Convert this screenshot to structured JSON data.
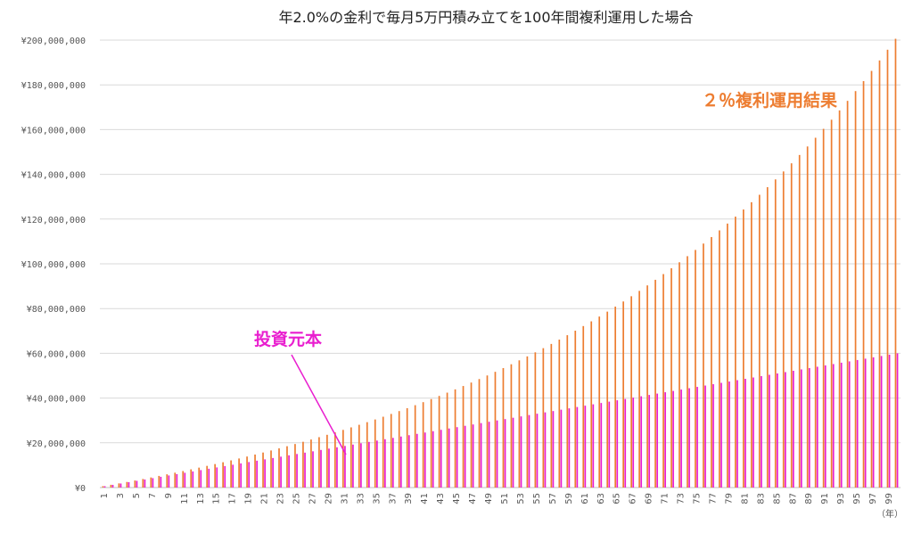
{
  "chart_data": {
    "type": "bar",
    "title": "年2.0%の金利で毎月5万円積み立てを100年間複利運用した場合",
    "x_unit_label": "（年）",
    "x": [
      1,
      2,
      3,
      4,
      5,
      6,
      7,
      8,
      9,
      10,
      11,
      12,
      13,
      14,
      15,
      16,
      17,
      18,
      19,
      20,
      21,
      22,
      23,
      24,
      25,
      26,
      27,
      28,
      29,
      30,
      31,
      32,
      33,
      34,
      35,
      36,
      37,
      38,
      39,
      40,
      41,
      42,
      43,
      44,
      45,
      46,
      47,
      48,
      49,
      50,
      51,
      52,
      53,
      54,
      55,
      56,
      57,
      58,
      59,
      60,
      61,
      62,
      63,
      64,
      65,
      66,
      67,
      68,
      69,
      70,
      71,
      72,
      73,
      74,
      75,
      76,
      77,
      78,
      79,
      80,
      81,
      82,
      83,
      84,
      85,
      86,
      87,
      88,
      89,
      90,
      91,
      92,
      93,
      94,
      95,
      96,
      97,
      98,
      99,
      100
    ],
    "x_tick_labels": [
      "1",
      "3",
      "5",
      "7",
      "9",
      "11",
      "13",
      "15",
      "17",
      "19",
      "21",
      "23",
      "25",
      "27",
      "29",
      "31",
      "33",
      "35",
      "37",
      "39",
      "41",
      "43",
      "45",
      "47",
      "49",
      "51",
      "53",
      "55",
      "57",
      "59",
      "61",
      "63",
      "65",
      "67",
      "69",
      "71",
      "73",
      "75",
      "77",
      "79",
      "81",
      "83",
      "85",
      "87",
      "89",
      "91",
      "93",
      "95",
      "97",
      "99"
    ],
    "y_tick_labels": [
      "¥0",
      "¥20,000,000",
      "¥40,000,000",
      "¥60,000,000",
      "¥80,000,000",
      "¥100,000,000",
      "¥120,000,000",
      "¥140,000,000",
      "¥160,000,000",
      "¥180,000,000",
      "¥200,000,000"
    ],
    "ylim": [
      0,
      200000000
    ],
    "grid": true,
    "series": [
      {
        "name": "2％複利運用結果",
        "color": "#ED7D31",
        "values": [
          606638,
          1225286,
          1856289,
          2499906,
          3156400,
          3826041,
          4509106,
          5205880,
          5916650,
          6641714,
          7381374,
          8135939,
          8905726,
          9691058,
          10492267,
          11309688,
          12143667,
          12994555,
          13862711,
          14748503,
          15652305,
          16574500,
          17515478,
          18475640,
          19455394,
          20455158,
          21475360,
          22516435,
          23578833,
          24663012,
          25769440,
          26898597,
          28050975,
          29227076,
          30427415,
          31652520,
          32902932,
          34179205,
          35481906,
          36811617,
          38168936,
          39554473,
          40968855,
          42412725,
          43886741,
          45391581,
          46927936,
          48496518,
          50098056,
          51733297,
          53403009,
          55107977,
          56849009,
          58626934,
          60442602,
          62296885,
          64190677,
          66124897,
          68100487,
          70118413,
          72179667,
          74285266,
          76436253,
          78633698,
          80878699,
          83172381,
          85515898,
          87910435,
          90357208,
          92857467,
          95412495,
          98023610,
          100692165,
          103419552,
          106207200,
          109056578,
          111969195,
          114946602,
          117990394,
          121102210,
          124283734,
          127536698,
          130862882,
          134264115,
          137742278,
          141299306,
          144937185,
          148657957,
          152463720,
          156356630,
          160338901,
          164412809,
          168580693,
          172844958,
          177208075,
          181672581,
          186241086,
          190916271,
          195700890,
          200597772
        ],
        "annotation": "２％複利運用結果"
      },
      {
        "name": "投資元本",
        "color": "#E91ECF",
        "values": [
          600000,
          1200000,
          1800000,
          2400000,
          3000000,
          3600000,
          4200000,
          4800000,
          5400000,
          6000000,
          6600000,
          7200000,
          7800000,
          8400000,
          9000000,
          9600000,
          10200000,
          10800000,
          11400000,
          12000000,
          12600000,
          13200000,
          13800000,
          14400000,
          15000000,
          15600000,
          16200000,
          16800000,
          17400000,
          18000000,
          18600000,
          19200000,
          19800000,
          20400000,
          21000000,
          21600000,
          22200000,
          22800000,
          23400000,
          24000000,
          24600000,
          25200000,
          25800000,
          26400000,
          27000000,
          27600000,
          28200000,
          28800000,
          29400000,
          30000000,
          30600000,
          31200000,
          31800000,
          32400000,
          33000000,
          33600000,
          34200000,
          34800000,
          35400000,
          36000000,
          36600000,
          37200000,
          37800000,
          38400000,
          39000000,
          39600000,
          40200000,
          40800000,
          41400000,
          42000000,
          42600000,
          43200000,
          43800000,
          44400000,
          45000000,
          45600000,
          46200000,
          46800000,
          47400000,
          48000000,
          48600000,
          49200000,
          49800000,
          50400000,
          51000000,
          51600000,
          52200000,
          52800000,
          53400000,
          54000000,
          54600000,
          55200000,
          55800000,
          56400000,
          57000000,
          57600000,
          58200000,
          58800000,
          59400000,
          60000000
        ],
        "annotation": "投資元本"
      }
    ]
  }
}
